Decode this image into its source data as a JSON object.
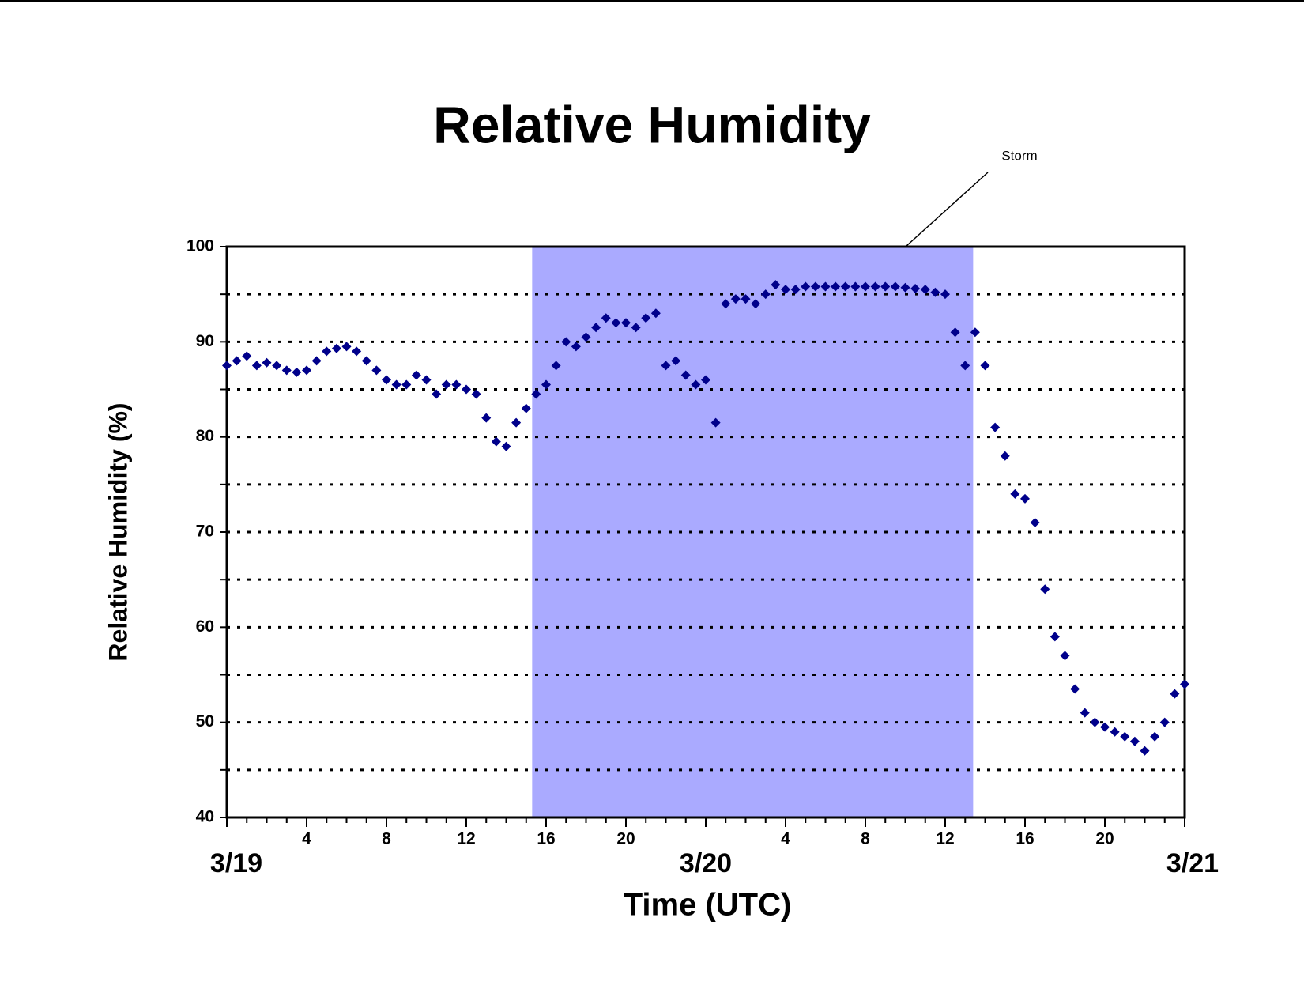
{
  "chart_data": {
    "type": "scatter",
    "title": "Relative Humidity",
    "ylabel": "Relative Humidity (%)",
    "xlabel": "Time (UTC)",
    "annotation": "Storm",
    "shade": {
      "x": [
        15.3,
        37.4
      ],
      "color": "#aaaaff"
    },
    "color": "#00008b",
    "grid": true,
    "xlim": [
      0,
      48
    ],
    "ylim": [
      40,
      100
    ],
    "yticks": [
      40,
      50,
      60,
      70,
      80,
      90,
      100
    ],
    "yminorticks": [
      45,
      55,
      65,
      75,
      85,
      95
    ],
    "xticks": [
      4,
      8,
      12,
      16,
      20,
      {
        "value": 28,
        "label": "4"
      },
      {
        "value": 32,
        "label": "8"
      },
      {
        "value": 36,
        "label": "12"
      },
      {
        "value": 40,
        "label": "16"
      },
      {
        "value": 44,
        "label": "20"
      }
    ],
    "xdateticks": [
      {
        "value": 0,
        "label": "3/19"
      },
      {
        "value": 24,
        "label": "3/20"
      },
      {
        "value": 48,
        "label": "3/21"
      }
    ],
    "xminorticks": [
      0,
      1,
      2,
      3,
      4,
      5,
      6,
      7,
      8,
      9,
      10,
      11,
      12,
      13,
      14,
      15,
      16,
      17,
      18,
      19,
      20,
      21,
      22,
      23,
      24,
      25,
      26,
      27,
      28,
      29,
      30,
      31,
      32,
      33,
      34,
      35,
      36,
      37,
      38,
      39,
      40,
      41,
      42,
      43,
      44,
      45,
      46,
      47,
      48
    ],
    "x": [
      0,
      0.5,
      1,
      1.5,
      2,
      2.5,
      3,
      3.5,
      4,
      4.5,
      5,
      5.5,
      6,
      6.5,
      7,
      7.5,
      8,
      8.5,
      9,
      9.5,
      10,
      10.5,
      11,
      11.5,
      12,
      12.5,
      13,
      13.5,
      14,
      14.5,
      15,
      15.5,
      16,
      16.5,
      17,
      17.5,
      18,
      18.5,
      19,
      19.5,
      20,
      20.5,
      21,
      21.5,
      22,
      22.5,
      23,
      23.5,
      24,
      24.5,
      25,
      25.5,
      26,
      26.5,
      27,
      27.5,
      28,
      28.5,
      29,
      29.5,
      30,
      30.5,
      31,
      31.5,
      32,
      32.5,
      33,
      33.5,
      34,
      34.5,
      35,
      35.5,
      36,
      36.5,
      37,
      37.5,
      38,
      38.5,
      39,
      39.5,
      40,
      40.5,
      41,
      41.5,
      42,
      42.5,
      43,
      43.5,
      44,
      44.5,
      45,
      45.5,
      46,
      46.5,
      47,
      47.5,
      48
    ],
    "values": [
      87.5,
      88,
      88.5,
      87.5,
      87.8,
      87.5,
      87,
      86.8,
      87,
      88,
      89,
      89.3,
      89.5,
      89,
      88,
      87,
      86,
      85.5,
      85.5,
      86.5,
      86,
      84.5,
      85.5,
      85.5,
      85,
      84.5,
      82,
      79.5,
      79,
      81.5,
      83,
      84.5,
      85.5,
      87.5,
      90,
      89.5,
      90.5,
      91.5,
      92.5,
      92,
      92,
      91.5,
      92.5,
      93,
      87.5,
      88,
      86.5,
      85.5,
      86,
      81.5,
      94,
      94.5,
      94.5,
      94,
      95,
      96,
      95.5,
      95.5,
      95.8,
      95.8,
      95.8,
      95.8,
      95.8,
      95.8,
      95.8,
      95.8,
      95.8,
      95.8,
      95.7,
      95.6,
      95.5,
      95.2,
      95,
      91,
      87.5,
      91,
      87.5,
      81,
      78,
      74,
      73.5,
      71,
      64,
      59,
      57,
      53.5,
      51,
      50,
      49.5,
      49,
      48.5,
      48,
      47,
      48.5,
      50,
      53,
      54
    ]
  }
}
